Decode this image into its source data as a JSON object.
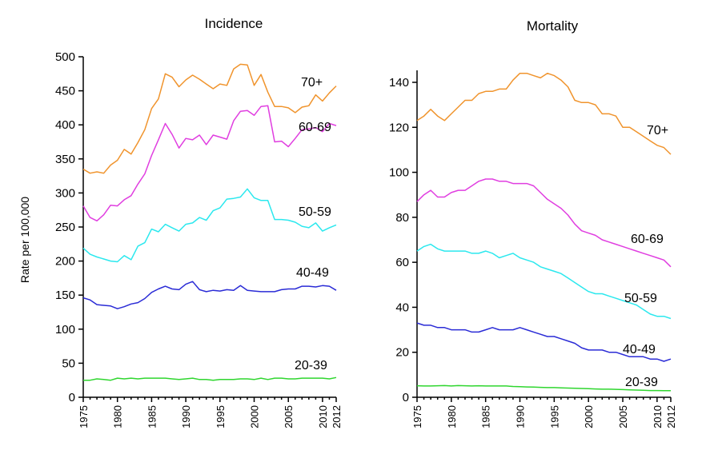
{
  "y_axis_label": "Rate per 100,000",
  "chart_data": [
    {
      "type": "line",
      "title": "Incidence",
      "xlabel": "",
      "ylabel": "Rate per 100,000",
      "xlim": [
        1975,
        2012
      ],
      "ylim": [
        0,
        500
      ],
      "yticks": [
        0,
        50,
        100,
        150,
        200,
        250,
        300,
        350,
        400,
        450,
        500
      ],
      "xticks": [
        1975,
        1980,
        1985,
        1990,
        1995,
        2000,
        2005,
        2010,
        2012
      ],
      "grid": false,
      "x": [
        1975,
        1976,
        1977,
        1978,
        1979,
        1980,
        1981,
        1982,
        1983,
        1984,
        1985,
        1986,
        1987,
        1988,
        1989,
        1990,
        1991,
        1992,
        1993,
        1994,
        1995,
        1996,
        1997,
        1998,
        1999,
        2000,
        2001,
        2002,
        2003,
        2004,
        2005,
        2006,
        2007,
        2008,
        2009,
        2010,
        2011,
        2012
      ],
      "series": [
        {
          "name": "70+",
          "color": "#f0942d",
          "values": [
            335,
            329,
            331,
            329,
            341,
            348,
            364,
            357,
            374,
            393,
            424,
            438,
            475,
            470,
            456,
            466,
            473,
            467,
            460,
            453,
            460,
            458,
            482,
            489,
            488,
            458,
            474,
            448,
            427,
            427,
            425,
            418,
            426,
            428,
            444,
            435,
            447,
            457
          ]
        },
        {
          "name": "60-69",
          "color": "#e03ee0",
          "values": [
            281,
            264,
            259,
            268,
            282,
            281,
            290,
            296,
            313,
            328,
            355,
            378,
            402,
            386,
            366,
            380,
            378,
            385,
            371,
            385,
            382,
            379,
            406,
            420,
            421,
            414,
            427,
            428,
            375,
            376,
            368,
            380,
            393,
            394,
            396,
            390,
            402,
            399
          ]
        },
        {
          "name": "50-59",
          "color": "#2be8ee",
          "values": [
            219,
            210,
            206,
            203,
            200,
            199,
            208,
            202,
            222,
            227,
            247,
            243,
            254,
            249,
            244,
            254,
            256,
            264,
            260,
            274,
            278,
            291,
            292,
            294,
            306,
            293,
            289,
            289,
            261,
            261,
            260,
            257,
            251,
            249,
            256,
            244,
            249,
            253
          ]
        },
        {
          "name": "40-49",
          "color": "#2a2bd6",
          "values": [
            146,
            143,
            136,
            135,
            134,
            130,
            133,
            137,
            139,
            145,
            154,
            159,
            163,
            159,
            158,
            166,
            170,
            158,
            155,
            157,
            156,
            158,
            157,
            164,
            157,
            156,
            155,
            155,
            155,
            158,
            159,
            159,
            163,
            163,
            162,
            164,
            163,
            157
          ]
        },
        {
          "name": "20-39",
          "color": "#2fd62f",
          "values": [
            25,
            25,
            27,
            26,
            25,
            28,
            27,
            28,
            27,
            28,
            28,
            28,
            28,
            27,
            26,
            27,
            28,
            26,
            26,
            25,
            26,
            26,
            26,
            27,
            27,
            26,
            28,
            26,
            28,
            28,
            27,
            27,
            28,
            28,
            28,
            28,
            27,
            29
          ]
        }
      ]
    },
    {
      "type": "line",
      "title": "Mortality",
      "xlabel": "",
      "ylabel": "",
      "xlim": [
        1975,
        2012
      ],
      "ylim": [
        0,
        150
      ],
      "yticks": [
        0,
        20,
        40,
        60,
        80,
        100,
        120,
        140
      ],
      "xticks": [
        1975,
        1980,
        1985,
        1990,
        1995,
        2000,
        2005,
        2010,
        2012
      ],
      "grid": false,
      "x": [
        1975,
        1976,
        1977,
        1978,
        1979,
        1980,
        1981,
        1982,
        1983,
        1984,
        1985,
        1986,
        1987,
        1988,
        1989,
        1990,
        1991,
        1992,
        1993,
        1994,
        1995,
        1996,
        1997,
        1998,
        1999,
        2000,
        2001,
        2002,
        2003,
        2004,
        2005,
        2006,
        2007,
        2008,
        2009,
        2010,
        2011,
        2012
      ],
      "series": [
        {
          "name": "70+",
          "color": "#f0942d",
          "values": [
            123,
            125,
            128,
            125,
            123,
            126,
            129,
            132,
            132,
            135,
            136,
            136,
            137,
            137,
            141,
            144,
            144,
            143,
            142,
            144,
            143,
            141,
            138,
            132,
            131,
            131,
            130,
            126,
            126,
            125,
            120,
            120,
            118,
            116,
            114,
            112,
            111,
            108
          ]
        },
        {
          "name": "60-69",
          "color": "#e03ee0",
          "values": [
            87,
            90,
            92,
            89,
            89,
            91,
            92,
            92,
            94,
            96,
            97,
            97,
            96,
            96,
            95,
            95,
            95,
            94,
            91,
            88,
            86,
            84,
            81,
            77,
            74,
            73,
            72,
            70,
            69,
            68,
            67,
            66,
            65,
            64,
            63,
            62,
            61,
            58
          ]
        },
        {
          "name": "50-59",
          "color": "#2be8ee",
          "values": [
            65,
            67,
            68,
            66,
            65,
            65,
            65,
            65,
            64,
            64,
            65,
            64,
            62,
            63,
            64,
            62,
            61,
            60,
            58,
            57,
            56,
            55,
            53,
            51,
            49,
            47,
            46,
            46,
            45,
            44,
            43,
            42,
            41,
            39,
            37,
            36,
            36,
            35
          ]
        },
        {
          "name": "40-49",
          "color": "#2a2bd6",
          "values": [
            33,
            32,
            32,
            31,
            31,
            30,
            30,
            30,
            29,
            29,
            30,
            31,
            30,
            30,
            30,
            31,
            30,
            29,
            28,
            27,
            27,
            26,
            25,
            24,
            22,
            21,
            21,
            21,
            20,
            20,
            19,
            18,
            18,
            18,
            17,
            17,
            16,
            17
          ]
        },
        {
          "name": "20-39",
          "color": "#2fd62f",
          "values": [
            5.1,
            5.0,
            5.0,
            5.1,
            5.2,
            5.0,
            5.2,
            5.1,
            5.0,
            5.1,
            5.0,
            5.0,
            5.0,
            5.0,
            4.8,
            4.7,
            4.6,
            4.5,
            4.4,
            4.3,
            4.3,
            4.2,
            4.1,
            4.0,
            3.9,
            3.8,
            3.7,
            3.6,
            3.6,
            3.5,
            3.4,
            3.3,
            3.2,
            3.1,
            3.0,
            3.0,
            2.9,
            2.9
          ]
        }
      ]
    }
  ]
}
